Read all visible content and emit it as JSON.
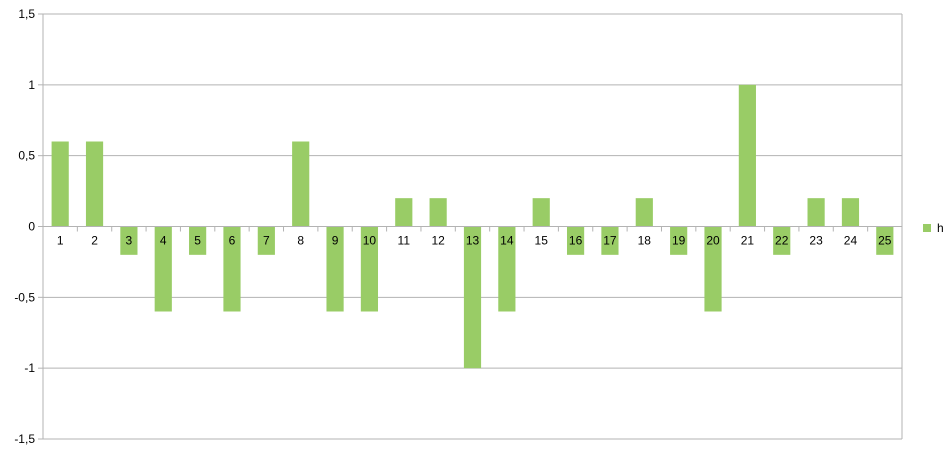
{
  "chart_data": {
    "type": "bar",
    "categories": [
      "1",
      "2",
      "3",
      "4",
      "5",
      "6",
      "7",
      "8",
      "9",
      "10",
      "11",
      "12",
      "13",
      "14",
      "15",
      "16",
      "17",
      "18",
      "19",
      "20",
      "21",
      "22",
      "23",
      "24",
      "25"
    ],
    "series": [
      {
        "name": "h",
        "values": [
          0.6,
          0.6,
          -0.2,
          -0.6,
          -0.2,
          -0.6,
          -0.2,
          0.6,
          -0.6,
          -0.6,
          0.2,
          0.2,
          -1,
          -0.6,
          0.2,
          -0.2,
          -0.2,
          0.2,
          -0.2,
          -0.6,
          1,
          -0.2,
          0.2,
          0.2,
          -0.2
        ],
        "color": "#99cc66"
      }
    ],
    "ylim": [
      -1.5,
      1.5
    ],
    "yticks": [
      "-1,5",
      "-1",
      "-0,5",
      "0",
      "0,5",
      "1",
      "1,5"
    ],
    "ytick_values": [
      -1.5,
      -1,
      -0.5,
      0,
      0.5,
      1,
      1.5
    ],
    "grid": true,
    "legend": "right",
    "title": "",
    "xlabel": "",
    "ylabel": ""
  }
}
